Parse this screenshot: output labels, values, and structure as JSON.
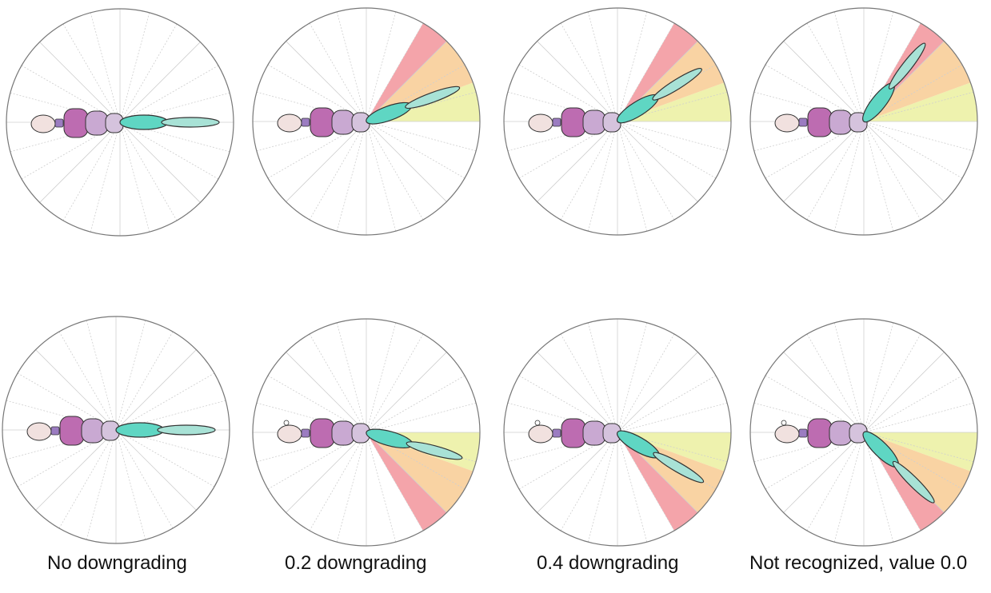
{
  "captions": [
    "No downgrading",
    "0.2 downgrading",
    "0.4 downgrading",
    "Not recognized, value 0.0"
  ],
  "colors": {
    "zone_red": "#f4a4aa",
    "zone_orange": "#f9d3a3",
    "zone_yellow": "#eef2ae",
    "head": "#f1e1df",
    "neck": "#9b7cc1",
    "thorax1": "#bd6cb1",
    "thorax2": "#c9a9d2",
    "thorax3": "#d5c3dd",
    "upper_arm": "#5fd6c3",
    "forearm": "#a8e2d6",
    "outline": "#333333"
  },
  "panels": [
    {
      "row": "top",
      "arm_angle_deg": 0,
      "zones": []
    },
    {
      "row": "top",
      "arm_angle_deg": 20,
      "zones": [
        "yellow",
        "orange",
        "red"
      ]
    },
    {
      "row": "top",
      "arm_angle_deg": 32,
      "zones": [
        "yellow",
        "orange",
        "red"
      ]
    },
    {
      "row": "top",
      "arm_angle_deg": 52,
      "zones": [
        "yellow",
        "orange",
        "red"
      ]
    },
    {
      "row": "bottom",
      "arm_angle_deg": 0,
      "zones": []
    },
    {
      "row": "bottom",
      "arm_angle_deg": -15,
      "zones": [
        "yellow",
        "orange",
        "red"
      ]
    },
    {
      "row": "bottom",
      "arm_angle_deg": -30,
      "zones": [
        "yellow",
        "orange",
        "red"
      ]
    },
    {
      "row": "bottom",
      "arm_angle_deg": -45,
      "zones": [
        "yellow",
        "orange",
        "red"
      ]
    }
  ]
}
